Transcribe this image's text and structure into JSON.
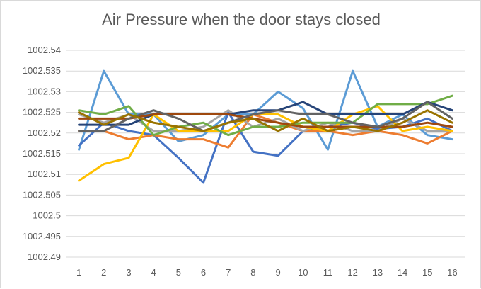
{
  "chart_data": {
    "type": "line",
    "title": "Air Pressure when the door stays closed",
    "xlabel": "",
    "ylabel": "",
    "categories": [
      "1",
      "2",
      "3",
      "4",
      "5",
      "6",
      "7",
      "8",
      "9",
      "10",
      "11",
      "12",
      "13",
      "14",
      "15",
      "16"
    ],
    "ylim": [
      1002.49,
      1002.54
    ],
    "yticks": [
      "1002.54",
      "1002.535",
      "1002.53",
      "1002.525",
      "1002.52",
      "1002.515",
      "1002.51",
      "1002.505",
      "1002.5",
      "1002.495",
      "1002.49"
    ],
    "grid": true,
    "legend": "none",
    "series": [
      {
        "color": "#5b9bd5",
        "values": [
          1002.516,
          1002.535,
          1002.5245,
          1002.5245,
          1002.518,
          1002.5195,
          1002.5245,
          1002.5245,
          1002.53,
          1002.526,
          1002.516,
          1002.535,
          1002.5215,
          1002.5245,
          1002.5195,
          1002.5185
        ]
      },
      {
        "color": "#4472c4",
        "values": [
          1002.517,
          1002.5225,
          1002.5205,
          1002.5195,
          1002.514,
          1002.508,
          1002.525,
          1002.5155,
          1002.5145,
          1002.5205,
          1002.5215,
          1002.5225,
          1002.521,
          1002.5215,
          1002.5235,
          1002.5205
        ]
      },
      {
        "color": "#ed7d31",
        "values": [
          1002.5205,
          1002.5205,
          1002.5185,
          1002.5195,
          1002.5185,
          1002.5185,
          1002.5165,
          1002.5245,
          1002.5225,
          1002.5205,
          1002.5205,
          1002.5195,
          1002.5205,
          1002.5195,
          1002.5175,
          1002.5205
        ]
      },
      {
        "color": "#a5a5a5",
        "values": [
          1002.5245,
          1002.5225,
          1002.5245,
          1002.5205,
          1002.5205,
          1002.5215,
          1002.5255,
          1002.5215,
          1002.5235,
          1002.5205,
          1002.5225,
          1002.5205,
          1002.5205,
          1002.5235,
          1002.5205,
          1002.5205
        ]
      },
      {
        "color": "#ffc000",
        "values": [
          1002.5085,
          1002.5125,
          1002.514,
          1002.5245,
          1002.5205,
          1002.5205,
          1002.5205,
          1002.5245,
          1002.5245,
          1002.5215,
          1002.5205,
          1002.5245,
          1002.5265,
          1002.5205,
          1002.5215,
          1002.5205
        ]
      },
      {
        "color": "#70ad47",
        "values": [
          1002.5255,
          1002.5245,
          1002.5265,
          1002.5195,
          1002.5215,
          1002.5225,
          1002.5195,
          1002.5215,
          1002.5215,
          1002.5225,
          1002.5225,
          1002.5225,
          1002.527,
          1002.527,
          1002.527,
          1002.529
        ]
      },
      {
        "color": "#264478",
        "values": [
          1002.522,
          1002.522,
          1002.522,
          1002.5245,
          1002.5245,
          1002.5245,
          1002.5245,
          1002.5255,
          1002.5255,
          1002.5275,
          1002.5245,
          1002.5245,
          1002.5245,
          1002.5245,
          1002.5275,
          1002.5255
        ]
      },
      {
        "color": "#9e480e",
        "values": [
          1002.5235,
          1002.5235,
          1002.5235,
          1002.5245,
          1002.5245,
          1002.5245,
          1002.5245,
          1002.5235,
          1002.5225,
          1002.5215,
          1002.5215,
          1002.5215,
          1002.5215,
          1002.5215,
          1002.5225,
          1002.5215
        ]
      },
      {
        "color": "#636363",
        "values": [
          1002.5205,
          1002.5205,
          1002.5235,
          1002.5255,
          1002.5235,
          1002.5205,
          1002.5225,
          1002.5245,
          1002.5255,
          1002.5245,
          1002.5245,
          1002.5225,
          1002.5215,
          1002.5235,
          1002.5275,
          1002.5235
        ]
      },
      {
        "color": "#997300",
        "values": [
          1002.525,
          1002.522,
          1002.5245,
          1002.5225,
          1002.5215,
          1002.5205,
          1002.5225,
          1002.5235,
          1002.5205,
          1002.5235,
          1002.5205,
          1002.5215,
          1002.5205,
          1002.5225,
          1002.5255,
          1002.5225
        ]
      }
    ]
  }
}
